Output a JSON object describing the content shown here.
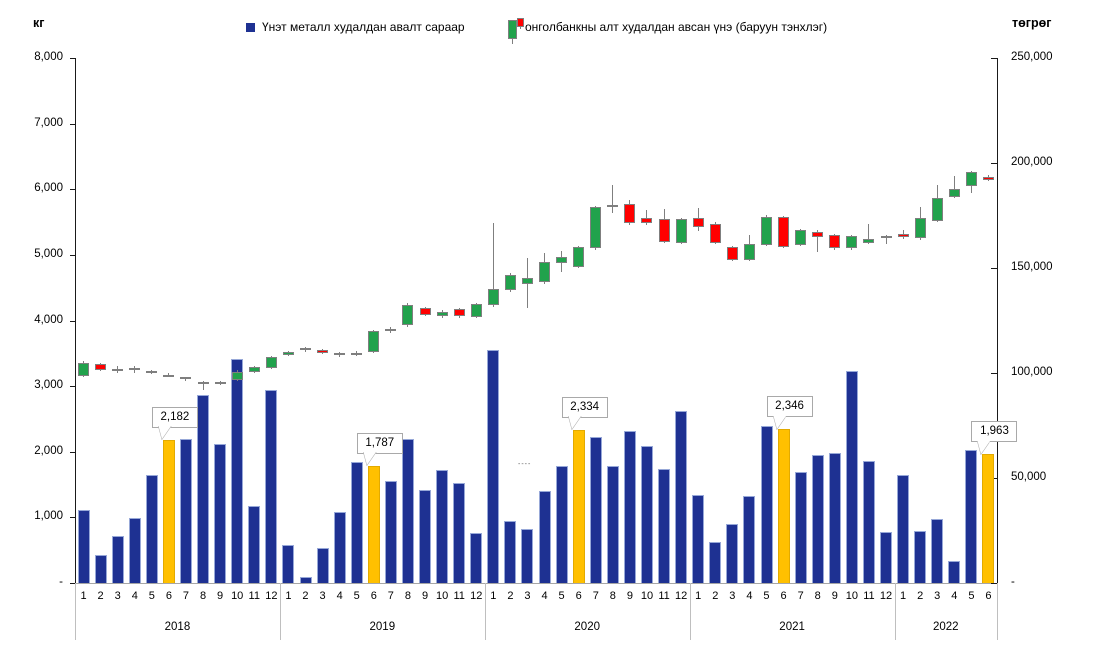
{
  "legend": {
    "bar": {
      "label": "Үнэт металл худалдан авалт сараар",
      "color": "#1E3192"
    },
    "candle": {
      "label": "онголбанкны алт худалдан авсан үнэ (баруун тэнхлэг)",
      "up_color": "#21A24C",
      "down_color": "#FF0000"
    }
  },
  "annotations": {
    "stray_marks": "----"
  },
  "chart_data": {
    "type": "bar+candlestick",
    "title": "",
    "left_axis": {
      "title": "кг",
      "min": 0,
      "max": 8000,
      "tick_step": 1000,
      "tick_labels": [
        "8,000",
        "7,000",
        "6,000",
        "5,000",
        "4,000",
        "3,000",
        "2,000",
        "1,000",
        "-"
      ]
    },
    "right_axis": {
      "title": "төгрөг",
      "min": 0,
      "max": 250000,
      "tick_step": 50000,
      "tick_labels": [
        "250,000",
        "200,000",
        "150,000",
        "100,000",
        "50,000",
        "-"
      ]
    },
    "x": {
      "years": [
        {
          "label": "2018",
          "months": [
            "1",
            "2",
            "3",
            "4",
            "5",
            "6",
            "7",
            "8",
            "9",
            "10",
            "11",
            "12"
          ]
        },
        {
          "label": "2019",
          "months": [
            "1",
            "2",
            "3",
            "4",
            "5",
            "6",
            "7",
            "8",
            "9",
            "10",
            "11",
            "12"
          ]
        },
        {
          "label": "2020",
          "months": [
            "1",
            "2",
            "3",
            "4",
            "5",
            "6",
            "7",
            "8",
            "9",
            "10",
            "11",
            "12"
          ]
        },
        {
          "label": "2021",
          "months": [
            "1",
            "2",
            "3",
            "4",
            "5",
            "6",
            "7",
            "8",
            "9",
            "10",
            "11",
            "12"
          ]
        },
        {
          "label": "2022",
          "months": [
            "1",
            "2",
            "3",
            "4",
            "5",
            "6"
          ]
        }
      ]
    },
    "bar_series": {
      "name": "Үнэт металл худалдан авалт сараар",
      "unit": "кг",
      "color": "#1E3192",
      "highlight_color": "#FFC000",
      "values": [
        1120,
        430,
        720,
        990,
        1650,
        2182,
        2190,
        2870,
        2120,
        3420,
        1180,
        2940,
        580,
        90,
        530,
        1080,
        1840,
        1787,
        1550,
        2200,
        1420,
        1720,
        1530,
        760,
        3550,
        940,
        820,
        1400,
        1780,
        2334,
        2220,
        1780,
        2310,
        2090,
        1730,
        2620,
        1340,
        630,
        900,
        1330,
        2400,
        2346,
        1690,
        1950,
        1980,
        3230,
        1860,
        780,
        1650,
        790,
        980,
        340,
        2020,
        1963
      ]
    },
    "bar_highlights": [
      {
        "month_index": 5,
        "label": "2,182",
        "value": 2182
      },
      {
        "month_index": 17,
        "label": "1,787",
        "value": 1787
      },
      {
        "month_index": 29,
        "label": "2,334",
        "value": 2334
      },
      {
        "month_index": 41,
        "label": "2,346",
        "value": 2346
      },
      {
        "month_index": 53,
        "label": "1,963",
        "value": 1963
      }
    ],
    "candle_series": {
      "name": "онголбанкны алт худалдан авсан үнэ (баруун тэнхлэг)",
      "unit": "төгрөг",
      "up_color": "#21A24C",
      "down_color": "#FF0000",
      "axis": "right",
      "ohlc_order": [
        "open",
        "high",
        "low",
        "close"
      ],
      "candles": [
        [
          98800,
          105800,
          98000,
          104800
        ],
        [
          104300,
          104800,
          100800,
          101300
        ],
        [
          101900,
          103300,
          99800,
          101300
        ],
        [
          102600,
          103100,
          100000,
          102100
        ],
        [
          100900,
          101500,
          99300,
          100200
        ],
        [
          99200,
          99800,
          97900,
          98400
        ],
        [
          97900,
          98300,
          96300,
          97000
        ],
        [
          95900,
          96300,
          92100,
          94800
        ],
        [
          95000,
          96400,
          94300,
          95900
        ],
        [
          96700,
          101200,
          96200,
          100700
        ],
        [
          100400,
          103300,
          99900,
          102900
        ],
        [
          102400,
          108100,
          101900,
          107400
        ],
        [
          108700,
          110600,
          108100,
          110100
        ],
        [
          111200,
          112600,
          110200,
          111700
        ],
        [
          111000,
          111500,
          109200,
          109700
        ],
        [
          109400,
          109900,
          107400,
          108800
        ],
        [
          109100,
          110500,
          108100,
          109500
        ],
        [
          110200,
          120600,
          109700,
          120000
        ],
        [
          120400,
          122100,
          119200,
          121000
        ],
        [
          122900,
          133100,
          121800,
          132400
        ],
        [
          130800,
          131400,
          126900,
          127600
        ],
        [
          127300,
          129800,
          126400,
          129200
        ],
        [
          130300,
          130900,
          126300,
          126900
        ],
        [
          126900,
          133400,
          126300,
          132900
        ],
        [
          132400,
          171600,
          131400,
          139900
        ],
        [
          139500,
          147600,
          138600,
          146700
        ],
        [
          142400,
          155000,
          130800,
          145100
        ],
        [
          143500,
          157100,
          142600,
          153000
        ],
        [
          152200,
          158300,
          148300,
          155400
        ],
        [
          150600,
          160500,
          149800,
          159800
        ],
        [
          159400,
          179500,
          158800,
          178900
        ],
        [
          179800,
          189400,
          176000,
          180200
        ],
        [
          180300,
          182400,
          170700,
          171300
        ],
        [
          173700,
          177600,
          170700,
          171300
        ],
        [
          173200,
          178000,
          161900,
          162500
        ],
        [
          162100,
          173700,
          161400,
          173200
        ],
        [
          173700,
          178400,
          167500,
          169400
        ],
        [
          171000,
          171700,
          161400,
          162100
        ],
        [
          159800,
          160500,
          153100,
          153800
        ],
        [
          153800,
          165700,
          153100,
          161400
        ],
        [
          161000,
          175200,
          160500,
          174500
        ],
        [
          174500,
          175000,
          159600,
          160200
        ],
        [
          161000,
          168800,
          160300,
          168100
        ],
        [
          167300,
          167900,
          157800,
          164600
        ],
        [
          165700,
          166400,
          158800,
          159400
        ],
        [
          159400,
          165900,
          158800,
          165200
        ],
        [
          162100,
          171000,
          161400,
          163700
        ],
        [
          165300,
          165900,
          161500,
          165000
        ],
        [
          166200,
          168000,
          164000,
          164600
        ],
        [
          164200,
          178900,
          163500,
          173700
        ],
        [
          172400,
          189500,
          171700,
          183200
        ],
        [
          184000,
          193800,
          183300,
          187500
        ],
        [
          189000,
          196400,
          185900,
          195900
        ],
        [
          193500,
          194300,
          191400,
          192000
        ]
      ]
    }
  }
}
